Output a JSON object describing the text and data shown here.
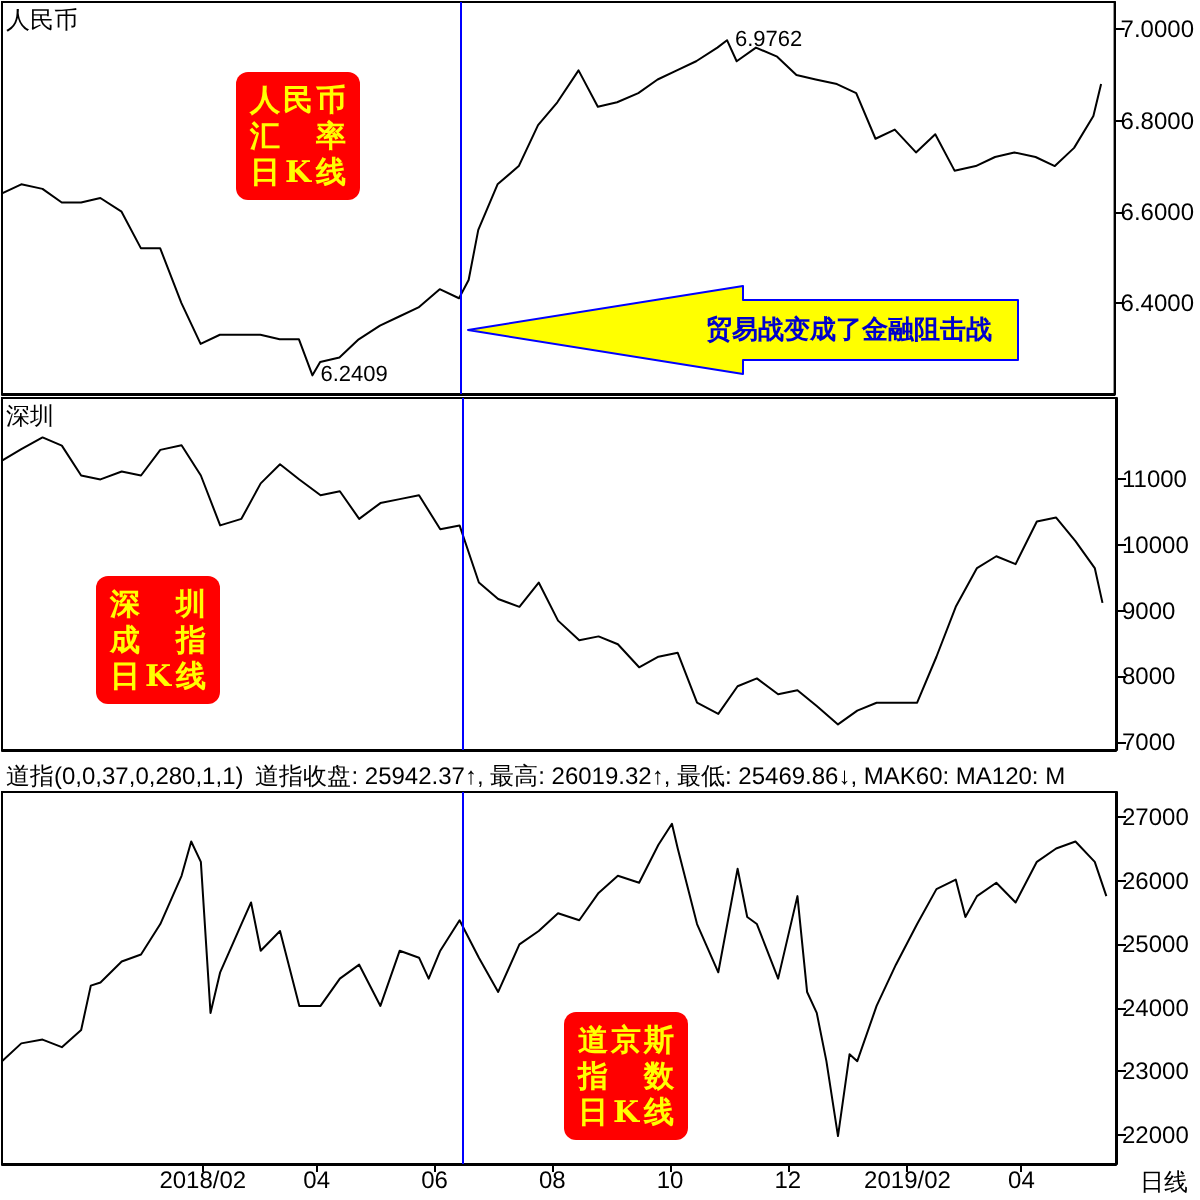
{
  "chart_data": [
    {
      "type": "line",
      "title": "人民币",
      "tick_labels": "y",
      "xlim": [
        "2017-10-20",
        "2019-05-20"
      ],
      "ylim": [
        6.2,
        7.06
      ],
      "yticks": [
        {
          "value": 6.4,
          "label": "6.4000"
        },
        {
          "value": 6.6,
          "label": "6.6000"
        },
        {
          "value": 6.8,
          "label": "6.8000"
        },
        {
          "value": 7.0,
          "label": "7.0000"
        }
      ],
      "x": [
        "2017-10-20",
        "2017-10-30",
        "2017-11-10",
        "2017-11-20",
        "2017-11-30",
        "2017-12-10",
        "2017-12-21",
        "2017-12-31",
        "2018-01-10",
        "2018-01-21",
        "2018-01-31",
        "2018-02-10",
        "2018-02-21",
        "2018-03-03",
        "2018-03-13",
        "2018-03-23",
        "2018-03-30",
        "2018-04-03",
        "2018-04-13",
        "2018-04-23",
        "2018-05-04",
        "2018-05-14",
        "2018-05-24",
        "2018-06-04",
        "2018-06-14",
        "2018-06-19",
        "2018-06-24",
        "2018-07-04",
        "2018-07-15",
        "2018-07-25",
        "2018-08-04",
        "2018-08-15",
        "2018-08-25",
        "2018-09-04",
        "2018-09-15",
        "2018-09-25",
        "2018-10-05",
        "2018-10-15",
        "2018-10-26",
        "2018-10-31",
        "2018-11-05",
        "2018-11-15",
        "2018-11-26",
        "2018-12-06",
        "2018-12-16",
        "2018-12-27",
        "2019-01-06",
        "2019-01-16",
        "2019-01-26",
        "2019-02-06",
        "2019-02-16",
        "2019-02-26",
        "2019-03-09",
        "2019-03-19",
        "2019-03-29",
        "2019-04-09",
        "2019-04-19",
        "2019-04-29",
        "2019-05-09",
        "2019-05-13"
      ],
      "series": [
        {
          "color": "#000000",
          "values": [
            6.64,
            6.66,
            6.65,
            6.62,
            6.62,
            6.63,
            6.6,
            6.52,
            6.52,
            6.4,
            6.31,
            6.33,
            6.33,
            6.33,
            6.32,
            6.32,
            6.2409,
            6.27,
            6.28,
            6.32,
            6.35,
            6.37,
            6.39,
            6.43,
            6.41,
            6.45,
            6.56,
            6.66,
            6.7,
            6.79,
            6.84,
            6.91,
            6.83,
            6.84,
            6.86,
            6.89,
            6.91,
            6.93,
            6.96,
            6.9762,
            6.93,
            6.96,
            6.94,
            6.9,
            6.89,
            6.88,
            6.86,
            6.76,
            6.78,
            6.73,
            6.77,
            6.69,
            6.7,
            6.72,
            6.73,
            6.72,
            6.7,
            6.74,
            6.81,
            6.88
          ]
        }
      ],
      "ref_lines": [
        {
          "axis": "x",
          "value": "2018-06-15",
          "color": "#0000ff"
        }
      ],
      "annotations": [
        "人民币汇率日K线",
        "贸易战变成了金融阻击战",
        {
          "text": "6.9762",
          "x": "2018-10-31",
          "y": 6.9762
        },
        {
          "text": "6.2409",
          "x": "2018-03-30",
          "y": 6.2409
        }
      ]
    },
    {
      "type": "line",
      "title": "深圳",
      "tick_labels": "y",
      "xlim": [
        "2017-10-20",
        "2019-05-20"
      ],
      "ylim": [
        6880,
        12240
      ],
      "yticks": [
        7000,
        8000,
        9000,
        10000,
        11000
      ],
      "x": [
        "2017-10-20",
        "2017-10-30",
        "2017-11-10",
        "2017-11-20",
        "2017-11-30",
        "2017-12-10",
        "2017-12-21",
        "2017-12-31",
        "2018-01-10",
        "2018-01-21",
        "2018-01-31",
        "2018-02-10",
        "2018-02-21",
        "2018-03-03",
        "2018-03-13",
        "2018-03-23",
        "2018-04-03",
        "2018-04-13",
        "2018-04-23",
        "2018-05-04",
        "2018-05-14",
        "2018-05-24",
        "2018-06-04",
        "2018-06-14",
        "2018-06-24",
        "2018-07-04",
        "2018-07-15",
        "2018-07-25",
        "2018-08-04",
        "2018-08-15",
        "2018-08-25",
        "2018-09-04",
        "2018-09-15",
        "2018-09-25",
        "2018-10-05",
        "2018-10-15",
        "2018-10-26",
        "2018-11-05",
        "2018-11-15",
        "2018-11-26",
        "2018-12-06",
        "2018-12-16",
        "2018-12-27",
        "2019-01-06",
        "2019-01-16",
        "2019-01-26",
        "2019-02-06",
        "2019-02-16",
        "2019-02-26",
        "2019-03-09",
        "2019-03-19",
        "2019-03-29",
        "2019-04-09",
        "2019-04-19",
        "2019-04-29",
        "2019-05-09",
        "2019-05-13"
      ],
      "series": [
        {
          "color": "#000000",
          "values": [
            11285,
            11460,
            11640,
            11515,
            11060,
            11000,
            11120,
            11060,
            11450,
            11520,
            11060,
            10300,
            10400,
            10940,
            11230,
            11000,
            10760,
            10820,
            10400,
            10640,
            10700,
            10760,
            10240,
            10300,
            9430,
            9180,
            9060,
            9430,
            8850,
            8550,
            8610,
            8490,
            8140,
            8300,
            8360,
            7600,
            7430,
            7850,
            7970,
            7730,
            7790,
            7550,
            7270,
            7480,
            7600,
            7600,
            7600,
            8300,
            9060,
            9650,
            9830,
            9710,
            10360,
            10420,
            10060,
            9650,
            9120
          ]
        }
      ],
      "ref_lines": [
        {
          "axis": "x",
          "value": "2018-06-15",
          "color": "#0000ff"
        }
      ],
      "annotations": [
        "深圳成指日K线"
      ]
    },
    {
      "type": "line",
      "title": "道指(0,0,37,0,280,1,1)",
      "subtitle": "道指收盘: 25942.37↑, 最高: 26019.32↑, 最低: 25469.86↓, MAK60: MA120: M",
      "xlim": [
        "2017-10-20",
        "2019-05-20"
      ],
      "ylim": [
        21540,
        27400
      ],
      "xticks": [
        {
          "value": "2018-02-01",
          "label": "2018/02"
        },
        {
          "value": "2018-04-01",
          "label": "04"
        },
        {
          "value": "2018-06-01",
          "label": "06"
        },
        {
          "value": "2018-08-01",
          "label": "08"
        },
        {
          "value": "2018-10-01",
          "label": "10"
        },
        {
          "value": "2018-12-01",
          "label": "12"
        },
        {
          "value": "2019-02-01",
          "label": "2019/02"
        },
        {
          "value": "2019-04-01",
          "label": "04"
        }
      ],
      "yticks": [
        22000,
        23000,
        24000,
        25000,
        26000,
        27000
      ],
      "x": [
        "2017-10-20",
        "2017-10-30",
        "2017-11-10",
        "2017-11-20",
        "2017-11-30",
        "2017-12-05",
        "2017-12-10",
        "2017-12-21",
        "2017-12-31",
        "2018-01-10",
        "2018-01-21",
        "2018-01-26",
        "2018-01-31",
        "2018-02-05",
        "2018-02-10",
        "2018-02-21",
        "2018-02-26",
        "2018-03-03",
        "2018-03-13",
        "2018-03-23",
        "2018-04-03",
        "2018-04-13",
        "2018-04-23",
        "2018-05-04",
        "2018-05-14",
        "2018-05-24",
        "2018-05-29",
        "2018-06-04",
        "2018-06-14",
        "2018-06-24",
        "2018-07-04",
        "2018-07-15",
        "2018-07-25",
        "2018-08-04",
        "2018-08-15",
        "2018-08-25",
        "2018-09-04",
        "2018-09-15",
        "2018-09-25",
        "2018-10-02",
        "2018-10-05",
        "2018-10-15",
        "2018-10-26",
        "2018-11-05",
        "2018-11-10",
        "2018-11-15",
        "2018-11-26",
        "2018-12-06",
        "2018-12-11",
        "2018-12-16",
        "2018-12-21",
        "2018-12-27",
        "2019-01-02",
        "2019-01-06",
        "2019-01-16",
        "2019-01-26",
        "2019-02-06",
        "2019-02-16",
        "2019-02-26",
        "2019-03-03",
        "2019-03-09",
        "2019-03-19",
        "2019-03-29",
        "2019-04-09",
        "2019-04-19",
        "2019-04-29",
        "2019-05-09",
        "2019-05-15"
      ],
      "series": [
        {
          "color": "#000000",
          "values": [
            23160,
            23440,
            23500,
            23380,
            23650,
            24350,
            24400,
            24730,
            24840,
            25320,
            26080,
            26620,
            26300,
            23920,
            24560,
            25320,
            25660,
            24900,
            25210,
            24030,
            24030,
            24460,
            24680,
            24030,
            24900,
            24790,
            24460,
            24900,
            25380,
            24790,
            24250,
            25000,
            25210,
            25490,
            25380,
            25810,
            26080,
            25970,
            26570,
            26900,
            26510,
            25320,
            24560,
            26190,
            25430,
            25320,
            24460,
            25760,
            24250,
            23920,
            23160,
            21980,
            23270,
            23160,
            24030,
            24680,
            25320,
            25870,
            26020,
            25430,
            25760,
            25970,
            25660,
            26300,
            26510,
            26620,
            26300,
            25760
          ]
        }
      ],
      "ref_lines": [
        {
          "axis": "x",
          "value": "2018-06-15",
          "color": "#0000ff"
        }
      ],
      "annotations": [
        "道京斯指数日K线",
        "日线"
      ]
    }
  ]
}
